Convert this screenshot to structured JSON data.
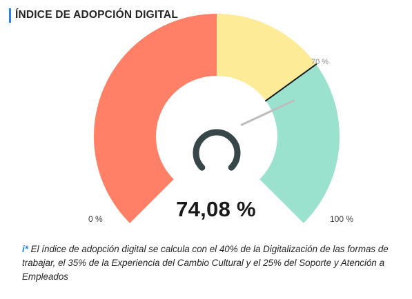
{
  "title": "ÍNDICE DE ADOPCIÓN DIGITAL",
  "chart_data": {
    "type": "gauge",
    "min": 0,
    "max": 100,
    "value": 74.08,
    "value_label": "74,08 %",
    "target": 70,
    "target_label": "70 %",
    "min_label": "0 %",
    "max_label": "100 %",
    "bands": [
      {
        "from": 0,
        "to": 50,
        "color": "#ff8066"
      },
      {
        "from": 50,
        "to": 70,
        "color": "#fdeb97"
      },
      {
        "from": 70,
        "to": 100,
        "color": "#9ae2cd"
      }
    ],
    "needle_color": "#bdbdbd",
    "target_line_color": "#1a1a1a",
    "hub_color": "#374649"
  },
  "footnote": {
    "marker": "i*",
    "text": " El índice de adopción digital se calcula con el 40% de la Digitalización de las formas de trabajar, el 35% de la Experiencia del Cambio Cultural y el 25% del Soporte y Atención a Empleados"
  }
}
